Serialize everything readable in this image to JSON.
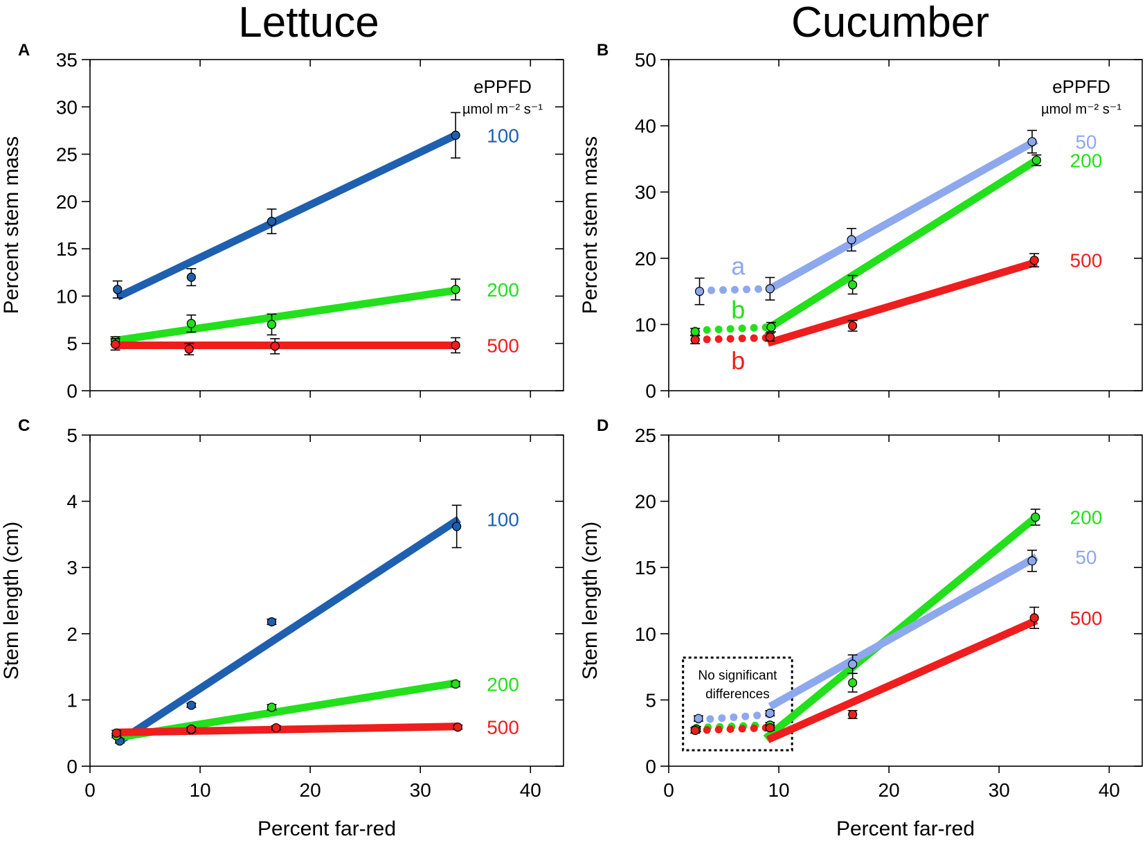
{
  "column_titles": [
    "Lettuce",
    "Cucumber"
  ],
  "colors": {
    "blue": "#1f5fb0",
    "light_blue": "#8ea8ee",
    "green": "#22e01b",
    "red": "#ee1e1e"
  },
  "chart_data": [
    {
      "id": "A",
      "type": "scatter",
      "species": "Lettuce",
      "xlabel": "",
      "ylabel": "Percent stem mass",
      "xlim": [
        0,
        43
      ],
      "ylim": [
        0,
        35
      ],
      "xticks": [
        0,
        10,
        20,
        30,
        40
      ],
      "yticks": [
        0,
        5,
        10,
        15,
        20,
        25,
        30,
        35
      ],
      "show_x_tick_labels": false,
      "legend": {
        "title": "ePPFD",
        "unit": "µmol m⁻² s⁻¹"
      },
      "series": [
        {
          "name": "100",
          "color": "#1f5fb0",
          "x": [
            2.5,
            9.2,
            16.5,
            33.2
          ],
          "y": [
            10.7,
            12.0,
            17.9,
            27.0
          ],
          "err": [
            0.9,
            0.9,
            1.3,
            2.4
          ],
          "fit": [
            {
              "x": [
                2.5,
                33.2
              ],
              "y": [
                9.9,
                27.0
              ],
              "style": "solid"
            }
          ]
        },
        {
          "name": "200",
          "color": "#22e01b",
          "x": [
            2.3,
            9.2,
            16.5,
            33.2
          ],
          "y": [
            5.3,
            7.1,
            7.0,
            10.7
          ],
          "err": [
            0.4,
            0.9,
            1.1,
            1.1
          ],
          "fit": [
            {
              "x": [
                2.3,
                33.2
              ],
              "y": [
                5.3,
                10.6
              ],
              "style": "solid"
            }
          ]
        },
        {
          "name": "500",
          "color": "#ee1e1e",
          "x": [
            2.3,
            9.0,
            16.8,
            33.2
          ],
          "y": [
            4.9,
            4.4,
            4.7,
            4.8
          ],
          "err": [
            0.6,
            0.6,
            0.8,
            0.8
          ],
          "fit": [
            {
              "x": [
                2.3,
                33.2
              ],
              "y": [
                4.8,
                4.8
              ],
              "style": "solid"
            }
          ]
        }
      ]
    },
    {
      "id": "B",
      "type": "scatter",
      "species": "Cucumber",
      "xlabel": "",
      "ylabel": "Percent stem mass",
      "xlim": [
        0,
        43
      ],
      "ylim": [
        0,
        50
      ],
      "xticks": [
        0,
        10,
        20,
        30,
        40
      ],
      "yticks": [
        0,
        10,
        20,
        30,
        40,
        50
      ],
      "show_x_tick_labels": false,
      "legend": {
        "title": "ePPFD",
        "unit": "µmol m⁻² s⁻¹"
      },
      "series": [
        {
          "name": "50",
          "color": "#8ea8ee",
          "x": [
            2.8,
            9.2,
            16.6,
            33.0
          ],
          "y": [
            15.0,
            15.4,
            22.8,
            37.6
          ],
          "err": [
            2.0,
            1.7,
            1.7,
            1.7
          ],
          "fit": [
            {
              "x": [
                2.8,
                9.2
              ],
              "y": [
                15.1,
                15.4
              ],
              "style": "dotted"
            },
            {
              "x": [
                9.2,
                33.4
              ],
              "y": [
                15.4,
                37.8
              ],
              "style": "solid"
            }
          ],
          "sig_letter": "a"
        },
        {
          "name": "200",
          "color": "#22e01b",
          "x": [
            2.4,
            9.3,
            16.7,
            33.4
          ],
          "y": [
            8.9,
            9.6,
            16.0,
            34.8
          ],
          "err": [
            0.5,
            0.7,
            1.4,
            0.8
          ],
          "fit": [
            {
              "x": [
                2.4,
                9.2
              ],
              "y": [
                9.1,
                9.6
              ],
              "style": "dotted"
            },
            {
              "x": [
                9.2,
                33.4
              ],
              "y": [
                9.6,
                34.8
              ],
              "style": "solid"
            }
          ],
          "sig_letter": "b"
        },
        {
          "name": "500",
          "color": "#ee1e1e",
          "x": [
            2.4,
            9.2,
            16.7,
            33.2
          ],
          "y": [
            7.7,
            8.1,
            9.8,
            19.7
          ],
          "err": [
            0.6,
            0.6,
            0.8,
            1.0
          ],
          "fit": [
            {
              "x": [
                2.4,
                9.0
              ],
              "y": [
                7.7,
                8.0
              ],
              "style": "dotted"
            },
            {
              "x": [
                9.0,
                33.4
              ],
              "y": [
                7.2,
                19.4
              ],
              "style": "solid"
            }
          ],
          "sig_letter": "b"
        }
      ]
    },
    {
      "id": "C",
      "type": "scatter",
      "species": "Lettuce",
      "xlabel": "Percent far-red",
      "ylabel": "Stem length (cm)",
      "xlim": [
        0,
        43
      ],
      "ylim": [
        0,
        5
      ],
      "xticks": [
        0,
        10,
        20,
        30,
        40
      ],
      "yticks": [
        0,
        1,
        2,
        3,
        4,
        5
      ],
      "show_x_tick_labels": true,
      "series": [
        {
          "name": "100",
          "color": "#1f5fb0",
          "x": [
            2.7,
            9.2,
            16.5,
            33.3
          ],
          "y": [
            0.38,
            0.92,
            2.18,
            3.62
          ],
          "err": [
            0.03,
            0.03,
            0.04,
            0.32
          ],
          "fit": [
            {
              "x": [
                2.7,
                33.5
              ],
              "y": [
                0.38,
                3.73
              ],
              "style": "solid"
            }
          ]
        },
        {
          "name": "200",
          "color": "#22e01b",
          "x": [
            2.4,
            9.2,
            16.5,
            33.2
          ],
          "y": [
            0.46,
            0.55,
            0.89,
            1.24
          ],
          "err": [
            0.03,
            0.03,
            0.04,
            0.04
          ],
          "fit": [
            {
              "x": [
                2.4,
                33.4
              ],
              "y": [
                0.43,
                1.26
              ],
              "style": "solid"
            }
          ]
        },
        {
          "name": "500",
          "color": "#ee1e1e",
          "x": [
            2.4,
            9.2,
            16.9,
            33.4
          ],
          "y": [
            0.5,
            0.56,
            0.58,
            0.59
          ],
          "err": [
            0.04,
            0.03,
            0.03,
            0.03
          ],
          "fit": [
            {
              "x": [
                2.4,
                33.4
              ],
              "y": [
                0.51,
                0.6
              ],
              "style": "solid"
            }
          ]
        }
      ]
    },
    {
      "id": "D",
      "type": "scatter",
      "species": "Cucumber",
      "xlabel": "Percent far-red",
      "ylabel": "Stem length (cm)",
      "xlim": [
        0,
        43
      ],
      "ylim": [
        0,
        25
      ],
      "xticks": [
        0,
        10,
        20,
        30,
        40
      ],
      "yticks": [
        0,
        5,
        10,
        15,
        20,
        25
      ],
      "show_x_tick_labels": true,
      "annotation": {
        "lines": [
          "No significant",
          "differences"
        ],
        "x_range": [
          1.3,
          11.2
        ],
        "y_range": [
          1.2,
          8.2
        ]
      },
      "series": [
        {
          "name": "200",
          "color": "#22e01b",
          "x": [
            2.5,
            9.2,
            16.7,
            33.3
          ],
          "y": [
            2.8,
            3.1,
            6.3,
            18.8
          ],
          "err": [
            0.2,
            0.2,
            0.7,
            0.6
          ],
          "fit": [
            {
              "x": [
                2.5,
                8.8
              ],
              "y": [
                2.9,
                3.1
              ],
              "style": "dotted"
            },
            {
              "x": [
                8.8,
                33.5
              ],
              "y": [
                2.1,
                18.9
              ],
              "style": "solid"
            }
          ]
        },
        {
          "name": "50",
          "color": "#8ea8ee",
          "x": [
            2.7,
            9.2,
            16.7,
            33.0
          ],
          "y": [
            3.6,
            4.0,
            7.7,
            15.5
          ],
          "err": [
            0.2,
            0.2,
            0.7,
            0.8
          ],
          "fit": [
            {
              "x": [
                2.7,
                9.2
              ],
              "y": [
                3.5,
                3.9
              ],
              "style": "dotted"
            },
            {
              "x": [
                9.2,
                33.4
              ],
              "y": [
                4.5,
                15.8
              ],
              "style": "solid"
            }
          ]
        },
        {
          "name": "500",
          "color": "#ee1e1e",
          "x": [
            2.4,
            9.2,
            16.7,
            33.2
          ],
          "y": [
            2.7,
            2.9,
            3.9,
            11.2
          ],
          "err": [
            0.2,
            0.2,
            0.3,
            0.8
          ],
          "fit": [
            {
              "x": [
                2.4,
                9.0
              ],
              "y": [
                2.7,
                2.9
              ],
              "style": "dotted"
            },
            {
              "x": [
                9.0,
                33.4
              ],
              "y": [
                2.0,
                11.0
              ],
              "style": "solid"
            }
          ]
        }
      ]
    }
  ]
}
